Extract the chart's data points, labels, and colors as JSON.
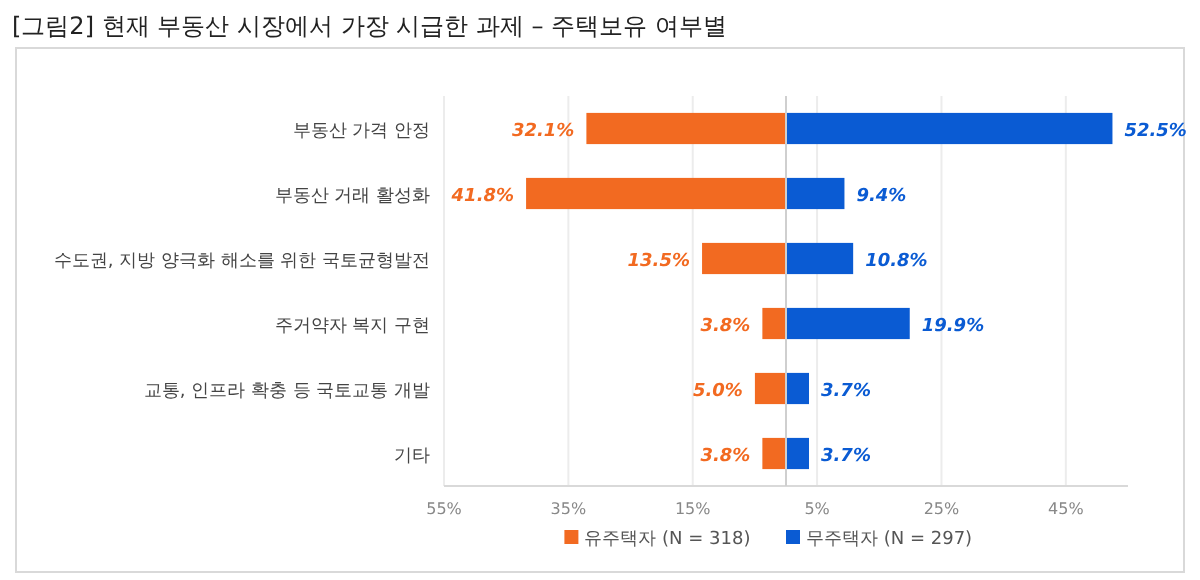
{
  "chart_data": [
    {
      "type": "bar",
      "orientation": "horizontal",
      "title": "[그림2] 현재 부동산 시장에서 가장 시급한 과제 – 주택보유 여부별",
      "categories": [
        "부동산 가격 안정",
        "부동산 거래 활성화",
        "수도권, 지방 양극화 해소를 위한 국토균형발전",
        "주거약자 복지 구현",
        "교통, 인프라 확충 등 국토교통 개발",
        "기타"
      ],
      "series": [
        {
          "name": "유주택자 (N = 318)",
          "color": "#f26a21",
          "values": [
            32.1,
            41.8,
            13.5,
            3.8,
            5.0,
            3.8
          ]
        }
      ],
      "xlim": [
        55,
        0
      ],
      "xticks": [
        {
          "value": 55,
          "label": "55%"
        },
        {
          "value": 35,
          "label": "35%"
        },
        {
          "value": 15,
          "label": "15%"
        }
      ],
      "value_labels": [
        "32.1%",
        "41.8%",
        "13.5%",
        "3.8%",
        "5.0%",
        "3.8%"
      ],
      "grid": "x",
      "legend": "bottom"
    },
    {
      "type": "bar",
      "orientation": "horizontal",
      "categories": [
        null,
        null,
        null,
        null,
        null,
        null
      ],
      "series": [
        {
          "name": "무주택자 (N = 297)",
          "color": "#0a5bd3",
          "values": [
            52.5,
            9.4,
            10.8,
            19.9,
            3.7,
            3.7
          ]
        }
      ],
      "xlim": [
        0,
        55
      ],
      "xticks": [
        {
          "value": 5,
          "label": "5%"
        },
        {
          "value": 25,
          "label": "25%"
        },
        {
          "value": 45,
          "label": "45%"
        }
      ],
      "value_labels": [
        "52.5%",
        "9.4%",
        "10.8%",
        "19.9%",
        "3.7%",
        "3.7%"
      ],
      "tick_labels": "x",
      "grid": "x",
      "legend": "bottom"
    }
  ]
}
